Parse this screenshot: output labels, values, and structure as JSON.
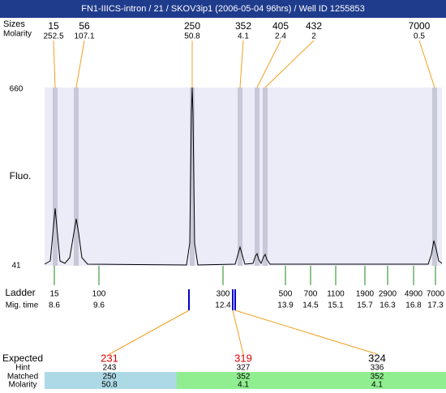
{
  "header": {
    "title": "FN1-IIICS-intron / 21 / SKOV3ip1 (2006-05-04 96hrs) / Well ID 1255853"
  },
  "peaks": {
    "size_label": "Sizes",
    "molarity_label": "Molarity",
    "sizes": [
      "15",
      "56",
      "250",
      "352",
      "405",
      "432",
      "7000"
    ],
    "molarity": [
      "252.5",
      "107.1",
      "50.8",
      "4.1",
      "2.4",
      "2",
      "0.5"
    ]
  },
  "plot": {
    "y_label": "Fluo.",
    "y_max": "660",
    "y_min": "41"
  },
  "ladder": {
    "label": "Ladder",
    "time_label": "Mig. time",
    "sizes": [
      "15",
      "100",
      "300",
      "500",
      "700",
      "1100",
      "1900",
      "2900",
      "4900",
      "7000"
    ],
    "mig_times": [
      "8.6",
      "9.6",
      "12.4",
      "13.9",
      "14.5",
      "15.1",
      "15.7",
      "16.3",
      "16.8",
      "17.3"
    ]
  },
  "matches": {
    "expected_label": "Expected",
    "hint_label": "Hint",
    "matched_label": "Matched",
    "molarity_label": "Molarity",
    "columns": [
      {
        "expected": "231",
        "hint": "243",
        "matched": "250",
        "molarity": "50.8"
      },
      {
        "expected": "319",
        "hint": "327",
        "matched": "352",
        "molarity": "4.1"
      },
      {
        "expected": "324",
        "hint": "336",
        "matched": "352",
        "molarity": "4.1"
      }
    ]
  }
}
